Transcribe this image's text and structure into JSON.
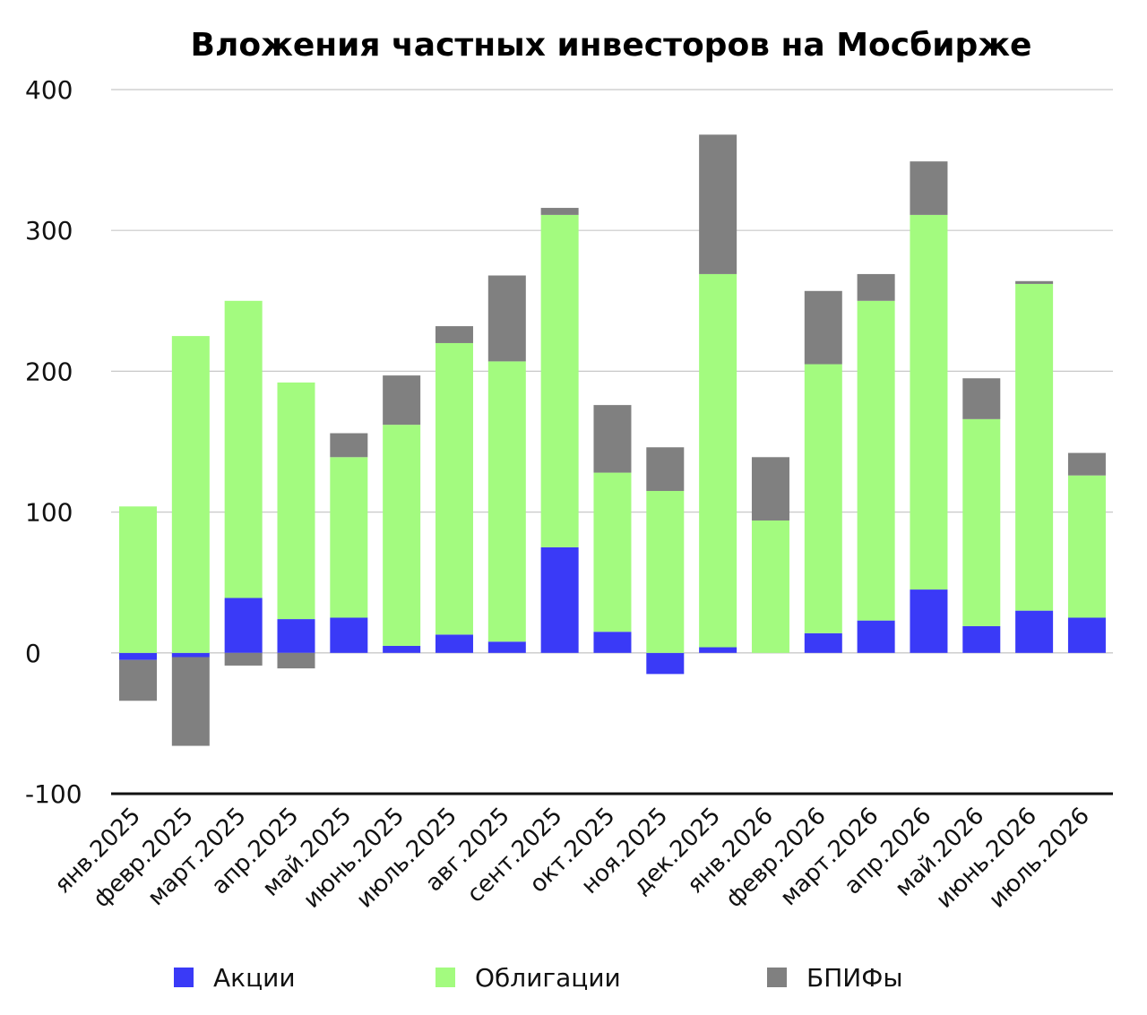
{
  "chart_data": {
    "type": "bar",
    "stacked": true,
    "title": "Вложения частных инвесторов на Мосбирже",
    "xlabel": "",
    "ylabel": "",
    "ylim": [
      -100,
      400
    ],
    "yticks": [
      400,
      300,
      200,
      100,
      0,
      -100
    ],
    "grid": true,
    "legend_position": "bottom",
    "categories": [
      "янв.2025",
      "февр.2025",
      "март.2025",
      "апр.2025",
      "май.2025",
      "июнь.2025",
      "июль.2025",
      "авг.2025",
      "сент.2025",
      "окт.2025",
      "ноя.2025",
      "дек.2025",
      "янв.2026",
      "февр.2026",
      "март.2026",
      "апр.2026",
      "май.2026",
      "июнь.2026",
      "июль.2026"
    ],
    "series": [
      {
        "name": "Акции",
        "color": "#3a3af7",
        "values": [
          -5,
          -3,
          39,
          24,
          25,
          5,
          13,
          8,
          75,
          15,
          -15,
          4,
          0,
          14,
          23,
          45,
          19,
          30,
          25
        ]
      },
      {
        "name": "Облигации",
        "color": "#a3fb7f",
        "values": [
          104,
          225,
          211,
          168,
          114,
          157,
          207,
          199,
          236,
          113,
          115,
          265,
          94,
          191,
          227,
          266,
          147,
          232,
          101
        ]
      },
      {
        "name": "БПИФы",
        "color": "#808080",
        "values": [
          -29,
          -63,
          -9,
          -11,
          17,
          35,
          12,
          61,
          5,
          48,
          31,
          99,
          45,
          52,
          19,
          38,
          29,
          2,
          16
        ]
      }
    ]
  }
}
